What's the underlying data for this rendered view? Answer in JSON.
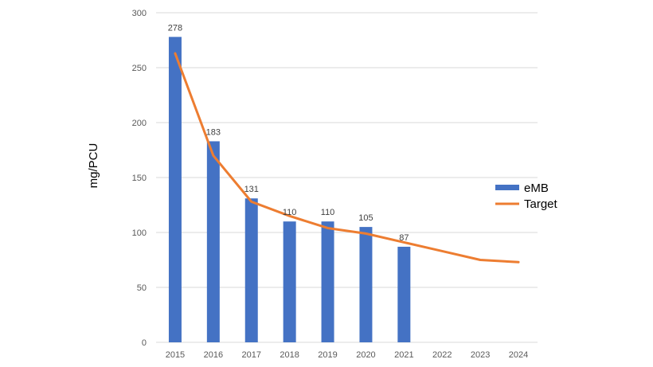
{
  "chart_data": {
    "type": "bar",
    "title": "",
    "xlabel": "",
    "ylabel": "mg/PCU",
    "ylim": [
      0,
      300
    ],
    "yticks": [
      0,
      50,
      100,
      150,
      200,
      250,
      300
    ],
    "categories": [
      "2015",
      "2016",
      "2017",
      "2018",
      "2019",
      "2020",
      "2021",
      "2022",
      "2023",
      "2024"
    ],
    "series": [
      {
        "name": "eMB",
        "kind": "bar",
        "color": "#4472c4",
        "values": [
          278,
          183,
          131,
          110,
          110,
          105,
          87,
          null,
          null,
          null
        ],
        "data_labels": true
      },
      {
        "name": "Target",
        "kind": "line",
        "color": "#ed7d31",
        "values": [
          263,
          170,
          128,
          115,
          104,
          99,
          91,
          83,
          75,
          73
        ],
        "data_labels": false
      }
    ],
    "grid": true,
    "legend": "right"
  }
}
